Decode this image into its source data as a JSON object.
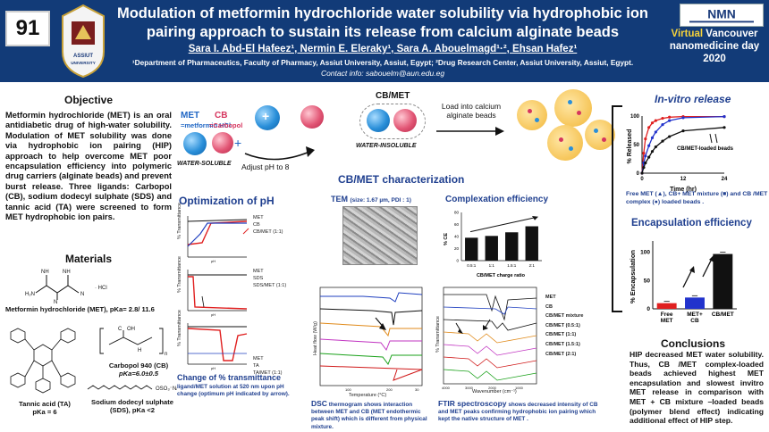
{
  "poster_number": "91",
  "title": "Modulation of metformin hydrochloride water solubility via hydrophobic ion pairing approach to sustain its release from calcium alginate beads",
  "authors": "Sara I. Abd-El Hafeez¹, Nermin E. Eleraky¹, Sara A. Abouelmagd¹·², Ehsan Hafez¹",
  "affiliations": "¹Department of Pharmaceutics, Faculty of Pharmacy, Assiut University, Assiut, Egypt; ²Drug Research Center, Assiut University, Assiut, Egypt.",
  "contact": "Contact info: sabouelm@aun.edu.eg",
  "logo_left_text": "ASSIUT UNIVERSITY",
  "logo_right_text": "NMN",
  "event": "Virtual Vancouver nanomedicine day 2020",
  "event_line1": "Virtual",
  "event_line1b": "Vancouver",
  "event_line2": "nanomedicine day",
  "event_line3": "2020",
  "objective": {
    "heading": "Objective",
    "text": "Metformin hydrochloride (MET) is an oral antidiabetic drug of high-water solubility. Modulation of MET solubility was done via hydrophobic ion pairing (HIP) approach to help overcome MET poor encapsulation efficiency into polymeric drug carriers (alginate beads) and prevent burst release. Three ligands: Carbopol (CB), sodium dodecyl sulphate (SDS) and tannic acid (TA) were screened to form MET hydrophobic ion pairs."
  },
  "materials": {
    "heading": "Materials",
    "metformin": "Metformin hydrochloride (MET), pKa= 2.8/ 11.6",
    "carbopol": "Carbopol 940 (CB)",
    "carbopol_pka": "pKa=6.0±0.5",
    "tannic": "Tannic acid (TA)",
    "tannic_pka": "pKa = 6",
    "sds": "Sodium dodecyl sulphate (SDS), pKa <2"
  },
  "scheme": {
    "met_label": "MET",
    "met_sub": "=metformin HCl",
    "cb_label": "CB",
    "cb_sub": "=Carbopol",
    "water_soluble": "WATER-SOLUBLE",
    "adjust_ph": "Adjust pH to 8",
    "cbmet": "CB/MET",
    "water_insoluble": "WATER-INSOLUBLE",
    "load_into": "Load into calcium alginate beads"
  },
  "cbmet_characterization": "CB/MET characterization",
  "optimization": {
    "heading": "Optimization of pH",
    "caption_title": "Change of % transmittance",
    "caption_text": "ligand/MET solution at 520 nm upon pH change (optimum pH indicated by arrow).",
    "ylabel": "% Transmittance",
    "xlabel": "pH",
    "legend1": [
      "MET",
      "CB",
      "CB/MET (1:1)"
    ],
    "legend2": [
      "MET",
      "SDS",
      "SDS/MET (1:1)"
    ],
    "legend3": [
      "MET",
      "TA",
      "TA/MET (1:1)"
    ]
  },
  "tem": {
    "heading": "TEM",
    "detail": "(size: 1.67 µm, PDI : 1)"
  },
  "complexation": {
    "heading": "Complexation efficiency",
    "ylabel": "% CE",
    "xlabel": "CB/MET charge ratio"
  },
  "dsc": {
    "ylabel": "Heat flow (W/g)",
    "xlabel": "Temperature (°C)",
    "caption_bold": "DSC",
    "caption": "thermogram shows interaction between MET and CB (MET endothermic peak shift) which is different from physical mixture."
  },
  "ftir": {
    "ylabel": "% Transmittance",
    "xlabel": "Wavenumber (cm⁻¹)",
    "legend": [
      "MET",
      "CB",
      "CB/MET mixture",
      "CB/MET (0.5:1)",
      "CB/MET (1:1)",
      "CB/MET (1.5:1)",
      "CB/MET (2:1)"
    ],
    "caption_bold": "FTIR spectroscopy",
    "caption": "shows decreased intensity of CB and MET peaks confirming hydrophobic ion pairing which kept the native structure of MET ."
  },
  "invitro": {
    "heading": "In-vitro release",
    "ylabel": "% Released",
    "xlabel": "Time (hr)",
    "annotation": "CB/MET-loaded beads",
    "legend_text": "Free MET (▲), CB+ MET mixture (■) and CB /MET complex (●) loaded beads ."
  },
  "encapsulation": {
    "heading": "Encapsulation efficiency",
    "ylabel": "% Encapsulation"
  },
  "conclusions": {
    "heading": "Conclusions",
    "text": "HIP decreased MET water solubility. Thus, CB /MET complex-loaded beads achieved highest MET encapsulation and slowest invitro MET release in comparison with MET + CB mixture –loaded beads (polymer blend effect) indicating additional effect of HIP step."
  },
  "chart_data": [
    {
      "type": "bar",
      "title": "Complexation efficiency",
      "xlabel": "CB/MET charge ratio",
      "ylabel": "% CE",
      "categories": [
        "0.5:1",
        "1:1",
        "1.5:1",
        "2:1"
      ],
      "values": [
        38,
        41,
        47,
        57
      ],
      "ylim": [
        0,
        80
      ],
      "yticks": [
        0,
        20,
        40,
        60,
        80
      ]
    },
    {
      "type": "bar",
      "title": "Encapsulation efficiency",
      "ylabel": "% Encapsulation",
      "categories": [
        "Free MET",
        "MET+ CB",
        "CB/MET"
      ],
      "values": [
        10,
        20,
        97
      ],
      "colors": [
        "#e02020",
        "#2233cc",
        "#111111"
      ],
      "ylim": [
        0,
        120
      ],
      "yticks": [
        0,
        50,
        100
      ]
    },
    {
      "type": "line",
      "title": "In-vitro release",
      "xlabel": "Time (hr)",
      "ylabel": "% Released",
      "xlim": [
        0,
        24
      ],
      "ylim": [
        0,
        100
      ],
      "xticks": [
        0,
        12,
        24
      ],
      "yticks": [
        0,
        50,
        100
      ],
      "series": [
        {
          "name": "Free MET",
          "color": "#e02020",
          "x": [
            0,
            0.5,
            1,
            2,
            3,
            4,
            6,
            8,
            12,
            24
          ],
          "y": [
            0,
            35,
            60,
            80,
            88,
            92,
            96,
            98,
            99,
            99
          ]
        },
        {
          "name": "CB+ MET mixture",
          "color": "#2233cc",
          "x": [
            0,
            0.5,
            1,
            2,
            3,
            4,
            6,
            8,
            12,
            24
          ],
          "y": [
            0,
            18,
            30,
            48,
            62,
            72,
            85,
            92,
            97,
            99
          ]
        },
        {
          "name": "CB /MET complex",
          "color": "#111111",
          "x": [
            0,
            0.5,
            1,
            2,
            3,
            4,
            6,
            8,
            12,
            24
          ],
          "y": [
            0,
            10,
            18,
            28,
            38,
            46,
            56,
            64,
            74,
            80
          ]
        }
      ]
    }
  ]
}
